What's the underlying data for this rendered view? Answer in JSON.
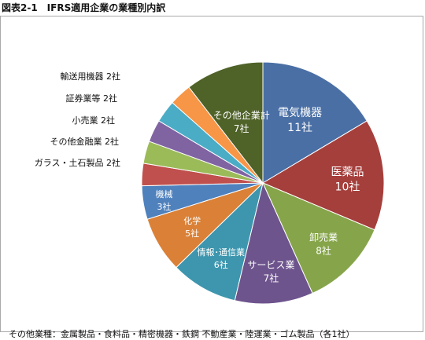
{
  "figure_title": "図表2-1　IFRS適用企業の業種別内訳",
  "footnote": "その他業種：金属製品・食料品・精密機器・鉄鋼 不動産業・陸運業・ゴム製品（各1社）",
  "chart_data": {
    "type": "pie",
    "title": "図表2-1　IFRS適用企業の業種別内訳",
    "unit": "社",
    "start_angle_deg": 0,
    "direction": "clockwise",
    "slices": [
      {
        "label": "電気機器",
        "value": 11,
        "value_label": "11社",
        "color": "#4a6fa5",
        "label_position": "inside",
        "text_color": "#ffffff"
      },
      {
        "label": "医薬品",
        "value": 10,
        "value_label": "10社",
        "color": "#a53f3c",
        "label_position": "inside",
        "text_color": "#ffffff"
      },
      {
        "label": "卸売業",
        "value": 8,
        "value_label": "8社",
        "color": "#86a54a",
        "label_position": "inside",
        "text_color": "#ffffff"
      },
      {
        "label": "サービス業",
        "value": 7,
        "value_label": "7社",
        "color": "#6e548d",
        "label_position": "inside",
        "text_color": "#ffffff"
      },
      {
        "label": "情報･通信業",
        "value": 6,
        "value_label": "6社",
        "color": "#3d96ae",
        "label_position": "inside",
        "text_color": "#ffffff"
      },
      {
        "label": "化学",
        "value": 5,
        "value_label": "5社",
        "color": "#da8137",
        "label_position": "inside",
        "text_color": "#ffffff"
      },
      {
        "label": "機械",
        "value": 3,
        "value_label": "3社",
        "color": "#4f81bd",
        "label_position": "inside",
        "text_color": "#ffffff"
      },
      {
        "label": "ガラス・土石製品",
        "value": 2,
        "value_label": "2社",
        "color": "#c0504d",
        "label_position": "outside",
        "text_color": "#111111"
      },
      {
        "label": "その他金融業",
        "value": 2,
        "value_label": "2社",
        "color": "#9bbb59",
        "label_position": "outside",
        "text_color": "#111111"
      },
      {
        "label": "小売業",
        "value": 2,
        "value_label": "2社",
        "color": "#8064a2",
        "label_position": "outside",
        "text_color": "#111111"
      },
      {
        "label": "証券業等",
        "value": 2,
        "value_label": "2社",
        "color": "#4bacc6",
        "label_position": "outside",
        "text_color": "#111111"
      },
      {
        "label": "輸送用機器",
        "value": 2,
        "value_label": "2社",
        "color": "#f79646",
        "label_position": "outside",
        "text_color": "#111111"
      },
      {
        "label": "その他企業計",
        "value": 7,
        "value_label": "7社",
        "color": "#4f6228",
        "label_position": "inside",
        "text_color": "#ffffff"
      }
    ]
  }
}
